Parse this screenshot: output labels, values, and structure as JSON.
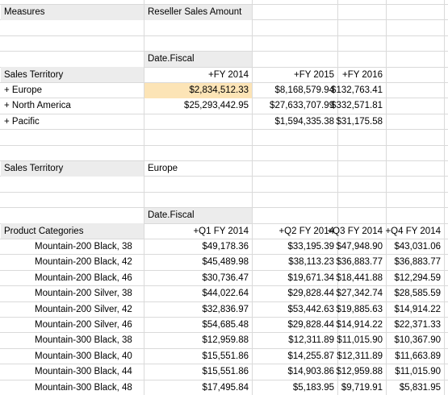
{
  "measures": {
    "label": "Measures",
    "value": "Reseller Sales Amount"
  },
  "pivot1": {
    "column_field": "Date.Fiscal",
    "row_field": "Sales Territory",
    "columns": [
      "+FY 2014",
      "+FY 2015",
      "+FY 2016"
    ],
    "rows": [
      {
        "label": "+  Europe",
        "cells": [
          "$2,834,512.33",
          "$8,168,579.94",
          "$132,763.41"
        ]
      },
      {
        "label": "+  North America",
        "cells": [
          "$25,293,442.95",
          "$27,633,707.99",
          "$332,571.81"
        ]
      },
      {
        "label": "+  Pacific",
        "cells": [
          null,
          "$1,594,335.38",
          "$31,175.58"
        ]
      }
    ]
  },
  "filter": {
    "label": "Sales Territory",
    "value": "Europe"
  },
  "pivot2": {
    "column_field": "Date.Fiscal",
    "row_field": "Product Categories",
    "columns": [
      "+Q1 FY 2014",
      "+Q2 FY 2014",
      "+Q3 FY 2014",
      "+Q4 FY 2014"
    ],
    "rows": [
      {
        "label": "Mountain-200 Black, 38",
        "cells": [
          "$49,178.36",
          "$33,195.39",
          "$47,948.90",
          "$43,031.06"
        ]
      },
      {
        "label": "Mountain-200 Black, 42",
        "cells": [
          "$45,489.98",
          "$38,113.23",
          "$36,883.77",
          "$36,883.77"
        ]
      },
      {
        "label": "Mountain-200 Black, 46",
        "cells": [
          "$30,736.47",
          "$19,671.34",
          "$18,441.88",
          "$12,294.59"
        ]
      },
      {
        "label": "Mountain-200 Silver, 38",
        "cells": [
          "$44,022.64",
          "$29,828.44",
          "$27,342.74",
          "$28,585.59"
        ]
      },
      {
        "label": "Mountain-200 Silver, 42",
        "cells": [
          "$32,836.97",
          "$53,442.63",
          "$19,885.63",
          "$14,914.22"
        ]
      },
      {
        "label": "Mountain-200 Silver, 46",
        "cells": [
          "$54,685.48",
          "$29,828.44",
          "$14,914.22",
          "$22,371.33"
        ]
      },
      {
        "label": "Mountain-300 Black, 38",
        "cells": [
          "$12,959.88",
          "$12,311.89",
          "$11,015.90",
          "$10,367.90"
        ]
      },
      {
        "label": "Mountain-300 Black, 40",
        "cells": [
          "$15,551.86",
          "$14,255.87",
          "$12,311.89",
          "$11,663.89"
        ]
      },
      {
        "label": "Mountain-300 Black, 44",
        "cells": [
          "$15,551.86",
          "$14,903.86",
          "$12,959.88",
          "$11,015.90"
        ]
      },
      {
        "label": "Mountain-300 Black, 48",
        "cells": [
          "$17,495.84",
          "$5,183.95",
          "$9,719.91",
          "$5,831.95"
        ]
      }
    ]
  }
}
